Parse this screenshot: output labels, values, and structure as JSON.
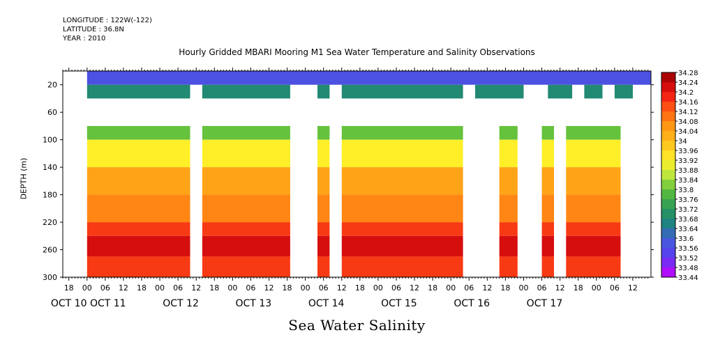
{
  "header": {
    "longitude": "LONGITUDE : 122W(-122)",
    "latitude": "LATITUDE : 36.8N",
    "year": "YEAR : 2010"
  },
  "chart_data": {
    "type": "heatmap",
    "title": "Hourly Gridded MBARI Mooring M1 Sea Water Temperature and Salinity Observations",
    "xlabel": "Sea Water Salinity",
    "ylabel": "DEPTH (m)",
    "ylim": [
      300,
      0
    ],
    "y_ticks": [
      20,
      60,
      100,
      140,
      180,
      220,
      260,
      300
    ],
    "x_hour_ticks": [
      "18",
      "00",
      "06",
      "12",
      "18",
      "00",
      "06",
      "12",
      "18",
      "00",
      "06",
      "12",
      "18",
      "00",
      "06",
      "12",
      "18",
      "00",
      "06",
      "12",
      "18",
      "00",
      "06",
      "12",
      "18",
      "00",
      "06",
      "12",
      "18",
      "00",
      "06",
      "12"
    ],
    "x_date_ticks": [
      "OCT 10",
      "OCT 11",
      "OCT 12",
      "OCT 13",
      "OCT 14",
      "OCT 15",
      "OCT 16",
      "OCT 17"
    ],
    "xlim_hours": [
      -8,
      186
    ],
    "colorbar": {
      "min": 33.44,
      "max": 34.28,
      "labels": [
        "34.28",
        "34.24",
        "34.2",
        "34.16",
        "34.12",
        "34.08",
        "34.04",
        "34",
        "33.96",
        "33.92",
        "33.88",
        "33.84",
        "33.8",
        "33.76",
        "33.72",
        "33.68",
        "33.64",
        "33.6",
        "33.56",
        "33.52",
        "33.48",
        "33.44"
      ]
    },
    "depth_bands": [
      {
        "depth_range": [
          0,
          20
        ],
        "salinity": 33.57
      },
      {
        "depth_range": [
          20,
          40
        ],
        "salinity": 33.68
      },
      {
        "depth_range": [
          80,
          100
        ],
        "salinity": 33.8
      },
      {
        "depth_range": [
          100,
          140
        ],
        "salinity": 33.92
      },
      {
        "depth_range": [
          140,
          180
        ],
        "salinity": 34.04
      },
      {
        "depth_range": [
          180,
          220
        ],
        "salinity": 34.08
      },
      {
        "depth_range": [
          220,
          240
        ],
        "salinity": 34.16
      },
      {
        "depth_range": [
          240,
          270
        ],
        "salinity": 34.22
      },
      {
        "depth_range": [
          270,
          300
        ],
        "salinity": 34.16
      }
    ]
  }
}
